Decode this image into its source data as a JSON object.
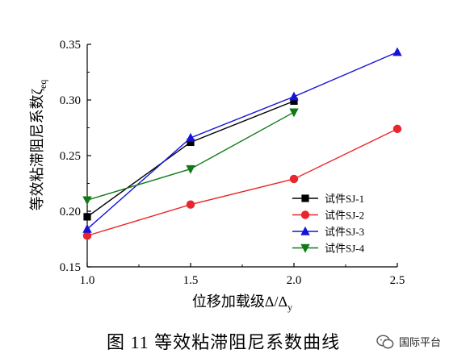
{
  "chart_data": {
    "type": "line",
    "xlabel": "位移加载级Δ/Δ",
    "xlabel_sub": "y",
    "ylabel": "等效粘滞阻尼系数ζ",
    "ylabel_sub": "eq",
    "xlim": [
      1.0,
      2.5
    ],
    "ylim": [
      0.15,
      0.35
    ],
    "xticks": [
      "1.0",
      "1.5",
      "2.0",
      "2.5"
    ],
    "yticks": [
      "0.15",
      "0.20",
      "0.25",
      "0.30",
      "0.35"
    ],
    "legend_position": "lower-right",
    "grid": false,
    "series": [
      {
        "name": "试件SJ-1",
        "marker": "square",
        "color": "#000000",
        "x": [
          1.0,
          1.5,
          2.0
        ],
        "y": [
          0.195,
          0.262,
          0.299
        ]
      },
      {
        "name": "试件SJ-2",
        "marker": "circle",
        "color": "#e8262b",
        "x": [
          1.0,
          1.5,
          2.0,
          2.5
        ],
        "y": [
          0.178,
          0.206,
          0.229,
          0.274
        ]
      },
      {
        "name": "试件SJ-3",
        "marker": "triangle-up",
        "color": "#1414d8",
        "x": [
          1.0,
          1.5,
          2.0,
          2.5
        ],
        "y": [
          0.184,
          0.266,
          0.303,
          0.343
        ]
      },
      {
        "name": "试件SJ-4",
        "marker": "triangle-down",
        "color": "#117a17",
        "x": [
          1.0,
          1.5,
          2.0
        ],
        "y": [
          0.21,
          0.238,
          0.289
        ]
      }
    ]
  },
  "caption": "图 11  等效粘滞阻尼系数曲线",
  "watermark": {
    "icon": "wechat-icon",
    "text": "国际平台"
  }
}
